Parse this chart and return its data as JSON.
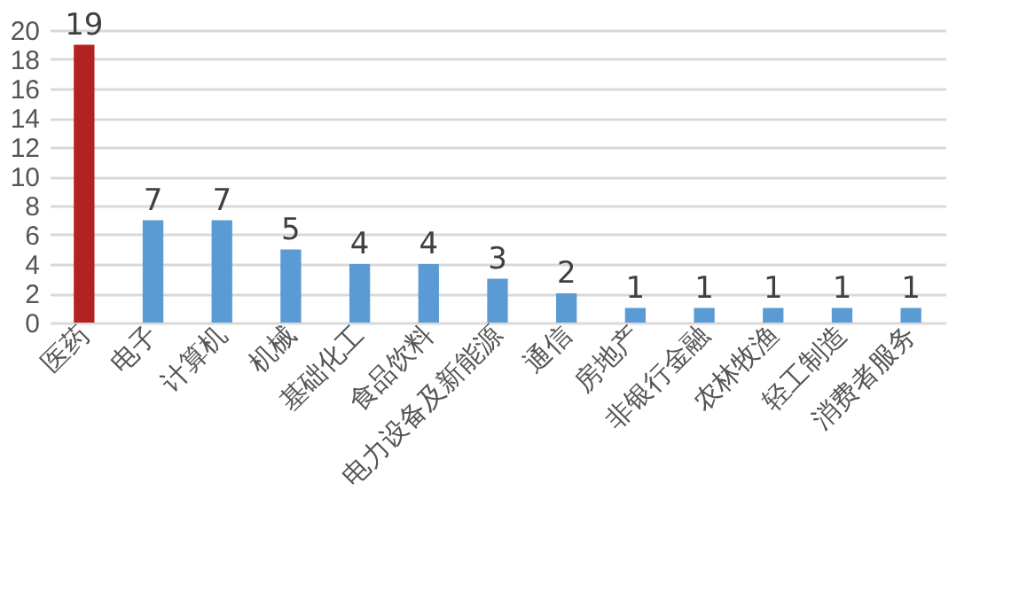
{
  "chart_data": {
    "type": "bar",
    "categories": [
      "医药",
      "电子",
      "计算机",
      "机械",
      "基础化工",
      "食品饮料",
      "电力设备及新能源",
      "通信",
      "房地产",
      "非银行金融",
      "农林牧渔",
      "轻工制造",
      "消费者服务"
    ],
    "values": [
      19,
      7,
      7,
      5,
      4,
      4,
      3,
      2,
      1,
      1,
      1,
      1,
      1
    ],
    "colors": [
      "#b22222",
      "#5b9bd5",
      "#5b9bd5",
      "#5b9bd5",
      "#5b9bd5",
      "#5b9bd5",
      "#5b9bd5",
      "#5b9bd5",
      "#5b9bd5",
      "#5b9bd5",
      "#5b9bd5",
      "#5b9bd5",
      "#5b9bd5"
    ],
    "ylim": [
      0,
      20
    ],
    "yticks": [
      0,
      2,
      4,
      6,
      8,
      10,
      12,
      14,
      16,
      18,
      20
    ],
    "grid": "y",
    "data_labels": true
  }
}
